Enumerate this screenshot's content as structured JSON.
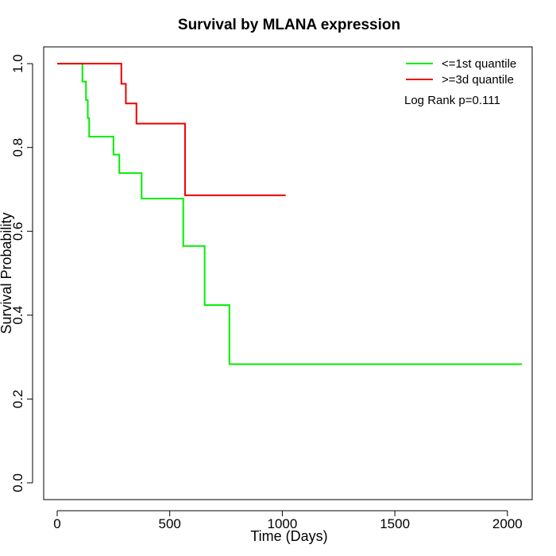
{
  "chart_data": {
    "type": "line",
    "title": "Survival by MLANA expression",
    "xlabel": "Time (Days)",
    "ylabel": "Survival Probability",
    "xlim": [
      -60,
      2110
    ],
    "ylim": [
      -0.04,
      1.04
    ],
    "x_ticks": [
      0,
      500,
      1000,
      1500,
      2000
    ],
    "x_tick_labels": [
      "0",
      "500",
      "1000",
      "1500",
      "2000"
    ],
    "y_ticks": [
      0.0,
      0.2,
      0.4,
      0.6,
      0.8,
      1.0
    ],
    "y_tick_labels": [
      "0.0",
      "0.2",
      "0.4",
      "0.6",
      "0.8",
      "1.0"
    ],
    "grid": false,
    "legend_position": "top-right",
    "annotation": "Log Rank p=0.111",
    "series": [
      {
        "name": "<=1st quantile",
        "color": "#00ee00",
        "step": true,
        "x": [
          0,
          112,
          128,
          136,
          142,
          250,
          276,
          375,
          560,
          655,
          765,
          2065
        ],
        "y": [
          1.0,
          0.957,
          0.913,
          0.87,
          0.826,
          0.783,
          0.739,
          0.678,
          0.565,
          0.424,
          0.283,
          0.283
        ]
      },
      {
        "name": ">=3d quantile",
        "color": "#ee0000",
        "step": true,
        "x": [
          0,
          285,
          305,
          352,
          568,
          1015
        ],
        "y": [
          1.0,
          0.952,
          0.905,
          0.857,
          0.686,
          0.686
        ]
      }
    ]
  }
}
